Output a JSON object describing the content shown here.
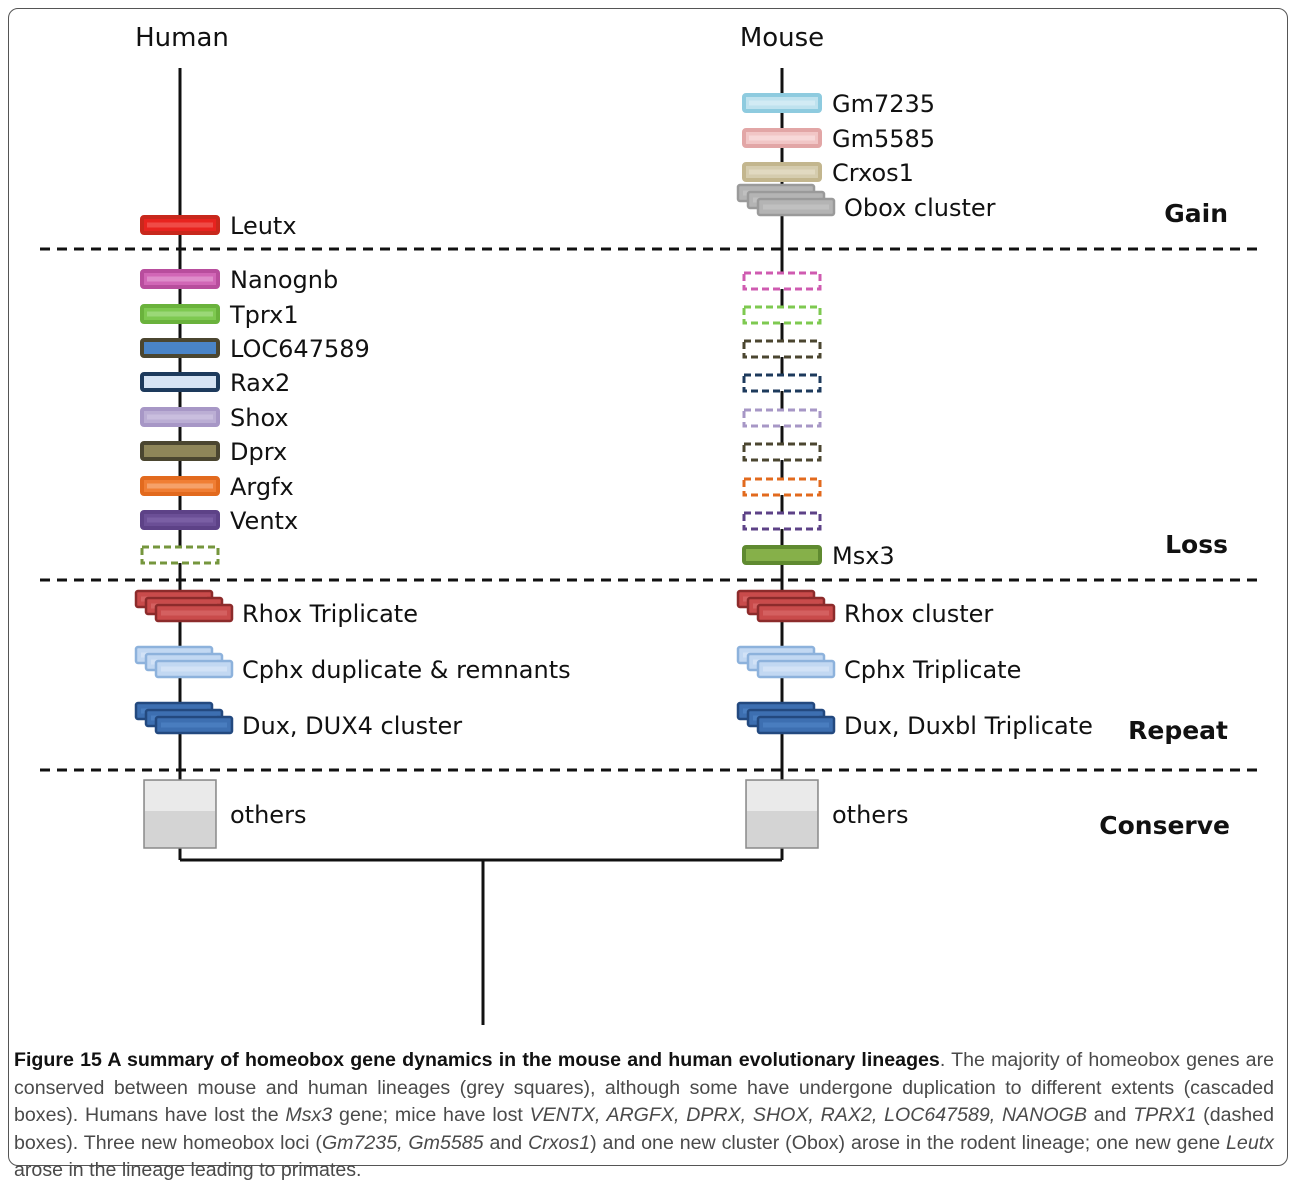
{
  "headers": {
    "human": "Human",
    "mouse": "Mouse"
  },
  "sections": [
    {
      "key": "gain",
      "label": "Gain"
    },
    {
      "key": "loss",
      "label": "Loss"
    },
    {
      "key": "repeat",
      "label": "Repeat"
    },
    {
      "key": "conserve",
      "label": "Conserve"
    }
  ],
  "genes": {
    "human": [
      {
        "type": "box",
        "label": "Leutx",
        "fill": "#e8231f",
        "inner": "#f15a55",
        "stroke": "#c8281c"
      },
      {
        "type": "box",
        "label": "Nanognb",
        "fill": "#d166b6",
        "inner": "#e29ad0",
        "stroke": "#b84d9d"
      },
      {
        "type": "box",
        "label": "Tprx1",
        "fill": "#7ec950",
        "inner": "#a6dc84",
        "stroke": "#6ab23c"
      },
      {
        "type": "box",
        "label": "LOC647589",
        "fill": "#4a84c7",
        "inner": "#4a84c7",
        "stroke": "#4b4630"
      },
      {
        "type": "box",
        "label": "Rax2",
        "fill": "#d5e3f3",
        "inner": "#d5e3f3",
        "stroke": "#1d3a5c"
      },
      {
        "type": "box",
        "label": "Shox",
        "fill": "#bbaed4",
        "inner": "#cdc3e2",
        "stroke": "#a797c6"
      },
      {
        "type": "box",
        "label": "Dprx",
        "fill": "#8f8659",
        "inner": "#8f8659",
        "stroke": "#4b4630"
      },
      {
        "type": "box",
        "label": "Argfx",
        "fill": "#f07e34",
        "inner": "#f7ae7c",
        "stroke": "#e26a1e"
      },
      {
        "type": "box",
        "label": "Ventx",
        "fill": "#6b4f96",
        "inner": "#7f64a8",
        "stroke": "#5d4287"
      },
      {
        "type": "dashed",
        "stroke": "#75963d"
      },
      {
        "type": "stack",
        "label": "Rhox Triplicate",
        "fill": "#c94b4b",
        "inner": "#d86a6a",
        "stroke": "#8c2b2b"
      },
      {
        "type": "stack",
        "label": "Cphx duplicate & remnants",
        "fill": "#c2d8f2",
        "inner": "#d8e7f8",
        "stroke": "#8db2dc"
      },
      {
        "type": "stack",
        "label": "Dux, DUX4 cluster",
        "fill": "#3d6fb1",
        "inner": "#4f83c4",
        "stroke": "#23497f"
      },
      {
        "type": "square",
        "label": "others"
      }
    ],
    "mouse": [
      {
        "type": "box",
        "label": "Gm7235",
        "fill": "#bfe2ee",
        "inner": "#d8eef6",
        "stroke": "#8ecbdf"
      },
      {
        "type": "box",
        "label": "Gm5585",
        "fill": "#f1c6c6",
        "inner": "#f8dede",
        "stroke": "#e2a6a6"
      },
      {
        "type": "box",
        "label": "Crxos1",
        "fill": "#d5ccae",
        "inner": "#e4ddc6",
        "stroke": "#c3b68e"
      },
      {
        "type": "stack",
        "label": "Obox cluster",
        "fill": "#b4b4b4",
        "inner": "#c4c4c4",
        "stroke": "#9a9a9a"
      },
      {
        "type": "dashed",
        "stroke": "#cf5bb0"
      },
      {
        "type": "dashed",
        "stroke": "#7ec950"
      },
      {
        "type": "dashed",
        "stroke": "#4b4630"
      },
      {
        "type": "dashed",
        "stroke": "#1d3a5c"
      },
      {
        "type": "dashed",
        "stroke": "#a797c6"
      },
      {
        "type": "dashed",
        "stroke": "#4b4630"
      },
      {
        "type": "dashed",
        "stroke": "#e26a1e"
      },
      {
        "type": "dashed",
        "stroke": "#5d4287"
      },
      {
        "type": "box",
        "label": "Msx3",
        "fill": "#86b04a",
        "inner": "#86b04a",
        "stroke": "#5f8a30"
      },
      {
        "type": "stack",
        "label": "Rhox cluster",
        "fill": "#c94b4b",
        "inner": "#d86a6a",
        "stroke": "#8c2b2b"
      },
      {
        "type": "stack",
        "label": "Cphx Triplicate",
        "fill": "#c2d8f2",
        "inner": "#d8e7f8",
        "stroke": "#8db2dc"
      },
      {
        "type": "stack",
        "label": "Dux, Duxbl  Triplicate",
        "fill": "#3d6fb1",
        "inner": "#4f83c4",
        "stroke": "#23497f"
      },
      {
        "type": "square",
        "label": "others"
      }
    ]
  },
  "caption": {
    "title": "Figure 15 A summary of homeobox gene dynamics in the mouse and human evolutionary lineages",
    "body": [
      {
        "t": ". The majority of homeobox genes are conserved between mouse and human lineages (grey squares), although some have undergone duplication to different extents (cascaded boxes). Humans have lost the "
      },
      {
        "t": "Msx3",
        "i": true
      },
      {
        "t": " gene; mice have lost "
      },
      {
        "t": "VENTX, ARGFX, DPRX, SHOX, RAX2, LOC647589, NANOGB",
        "i": true
      },
      {
        "t": " and "
      },
      {
        "t": "TPRX1",
        "i": true
      },
      {
        "t": " (dashed boxes). Three new homeobox loci ("
      },
      {
        "t": "Gm7235, Gm5585",
        "i": true
      },
      {
        "t": " and "
      },
      {
        "t": "Crxos1",
        "i": true
      },
      {
        "t": ") and one new cluster (Obox) arose in the rodent lineage; one new gene "
      },
      {
        "t": "Leutx",
        "i": true
      },
      {
        "t": " arose in the lineage leading to primates."
      }
    ]
  }
}
